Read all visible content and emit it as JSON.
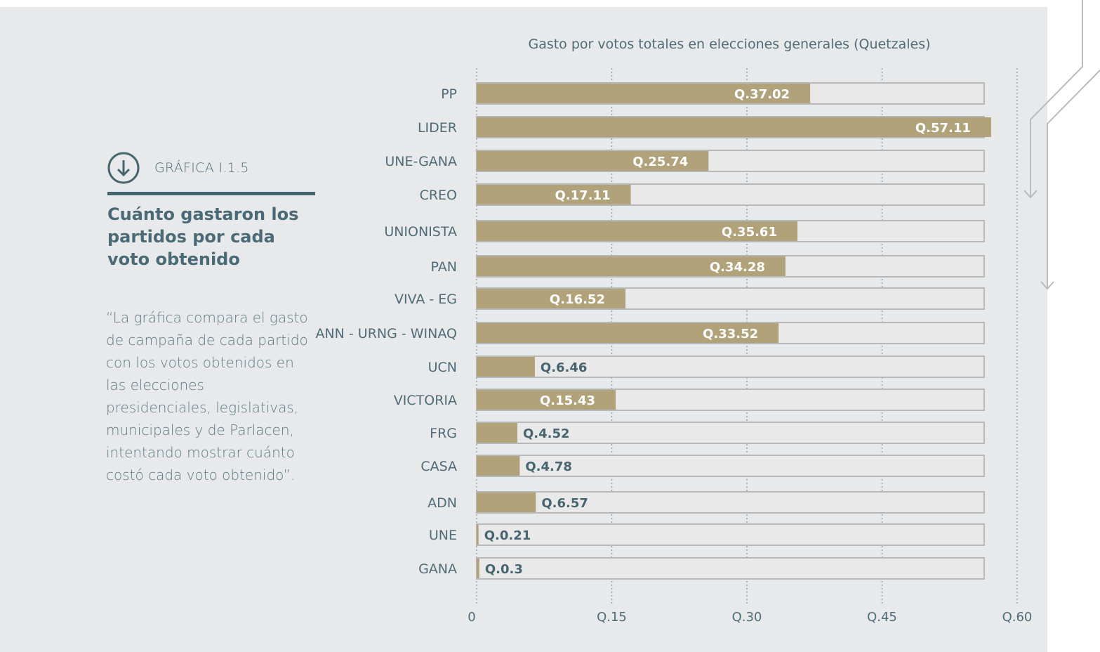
{
  "figure": {
    "label": "GRÁFICA I.1.5",
    "title": "Cuánto gastaron los partidos por cada voto obtenido",
    "description": "“La gráfica compara el gasto de campaña de cada partido con los votos obtenidos en las elecciones presidenciales, legislativas, municipales y de Parlacen, intentando mostrar cuánto costó cada voto obtenido”.",
    "icon": "arrow-down-circle-icon"
  },
  "colors": {
    "bar": "#b1a27a",
    "track": "#e9e9ea",
    "track_border": "#b6b8ba",
    "grid": "#9aa3a8",
    "text": "#4f6c77",
    "accent": "#46656f"
  },
  "chart_data": {
    "type": "bar",
    "orientation": "horizontal",
    "title": "Gasto por votos totales en elecciones generales (Quetzales)",
    "categories": [
      "PP",
      "LIDER",
      "UNE-GANA",
      "CREO",
      "UNIONISTA",
      "PAN",
      "VIVA - EG",
      "ANN -  URNG - WINAQ",
      "UCN",
      "VICTORIA",
      "FRG",
      "CASA",
      "ADN",
      "UNE",
      "GANA"
    ],
    "values": [
      37.02,
      57.11,
      25.74,
      17.11,
      35.61,
      34.28,
      16.52,
      33.52,
      6.46,
      15.43,
      4.52,
      4.78,
      6.57,
      0.21,
      0.3
    ],
    "value_labels": [
      "Q.37.02",
      "Q.57.11",
      "Q.25.74",
      "Q.17.11",
      "Q.35.61",
      "Q.34.28",
      "Q.16.52",
      "Q.33.52",
      "Q.6.46",
      "Q.15.43",
      "Q.4.52",
      "Q.4.78",
      "Q.6.57",
      "Q.0.21",
      "Q.0.3"
    ],
    "x_ticks": [
      "0",
      "Q.15",
      "Q.30",
      "Q.45",
      "Q.60"
    ],
    "xlim": [
      0,
      60
    ],
    "grid": true,
    "grid_style": "dotted"
  }
}
